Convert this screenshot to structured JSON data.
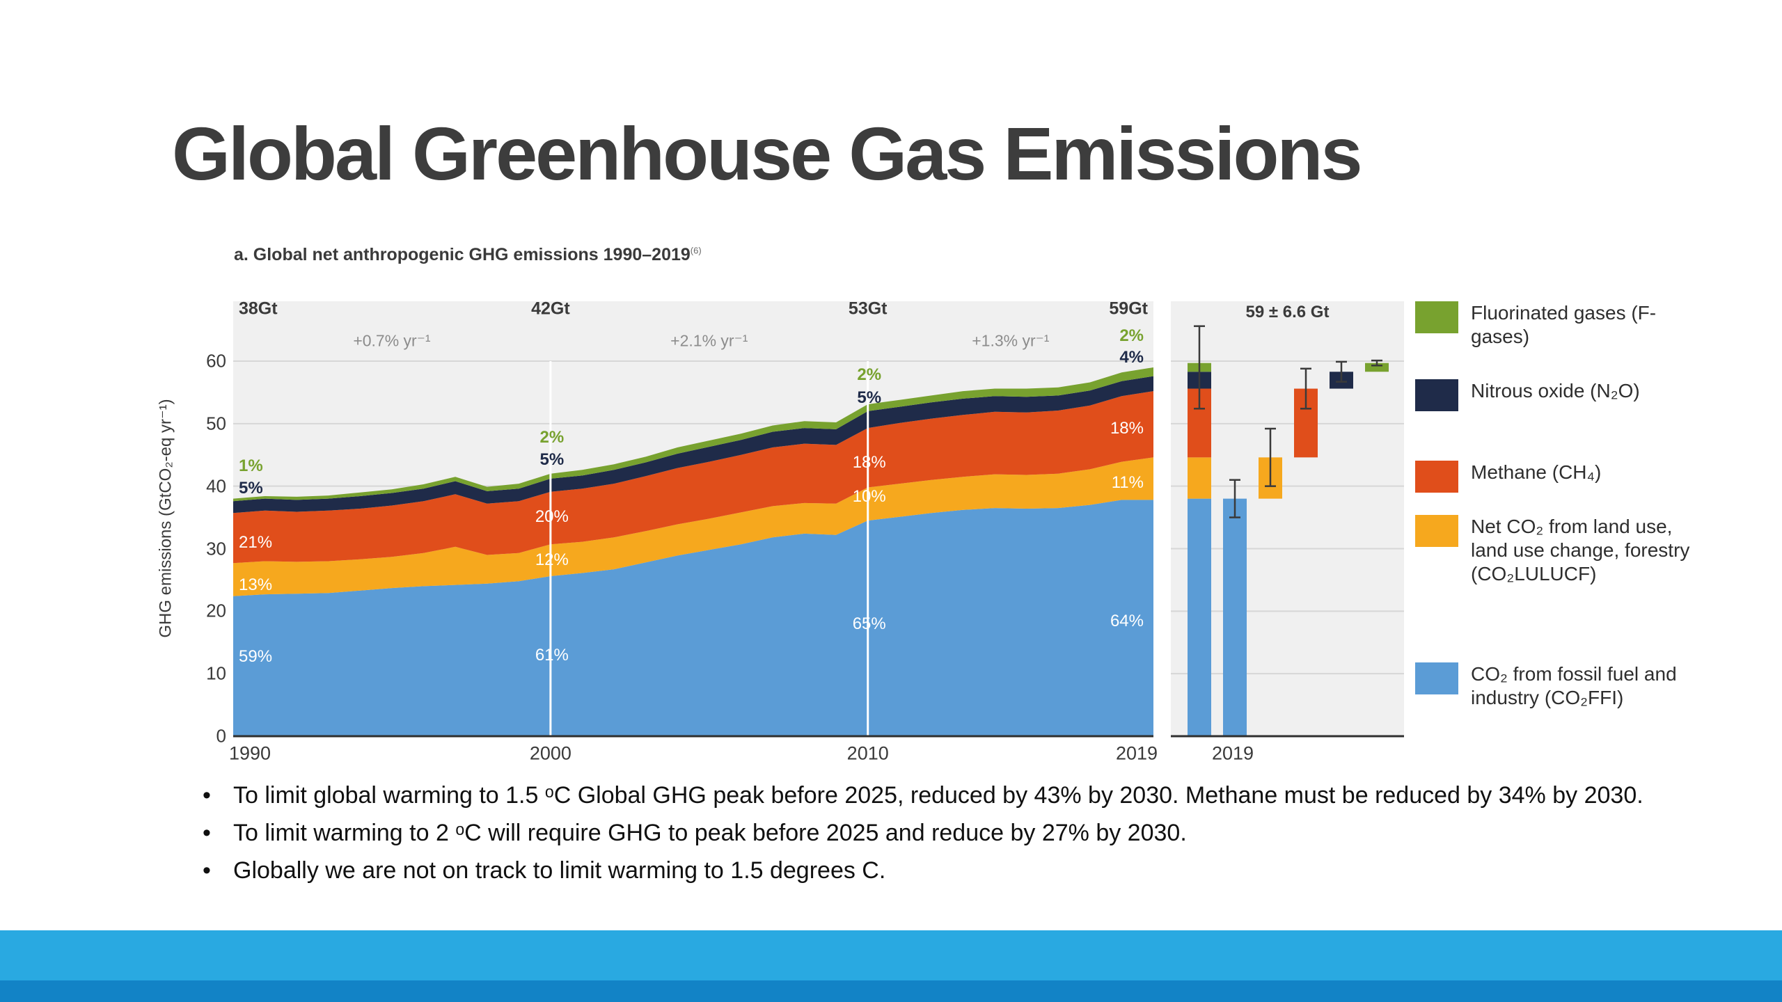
{
  "slide": {
    "title": "Global Greenhouse Gas Emissions",
    "bullets": [
      "To limit global warming to 1.5 ᵒC Global GHG peak before 2025, reduced by 43% by 2030. Methane must be reduced by 34% by 2030.",
      "To limit warming to 2 ᵒC  will require GHG to peak before 2025 and reduce by 27% by 2030.",
      "Globally we are not on track to limit warming to 1.5 degrees C."
    ],
    "footer_colors": {
      "main": "#29a9e1",
      "dark": "#1283c6"
    }
  },
  "figure": {
    "title": "a. Global net anthropogenic GHG emissions 1990–2019",
    "footnote_marker": "(6)",
    "y_axis_label": "GHG emissions (GtCO₂-eq yr⁻¹)",
    "y_ticks": [
      0,
      10,
      20,
      30,
      40,
      50,
      60
    ],
    "x_ticks": [
      "1990",
      "2000",
      "2010",
      "2019"
    ]
  },
  "chart_data": {
    "type": "area",
    "title": "a. Global net anthropogenic GHG emissions 1990–2019",
    "ylabel": "GHG emissions (GtCO₂-eq yr⁻¹)",
    "ylim": [
      0,
      60
    ],
    "grid": true,
    "legend_position": "right",
    "x": [
      1990,
      1991,
      1992,
      1993,
      1994,
      1995,
      1996,
      1997,
      1998,
      1999,
      2000,
      2001,
      2002,
      2003,
      2004,
      2005,
      2006,
      2007,
      2008,
      2009,
      2010,
      2011,
      2012,
      2013,
      2014,
      2015,
      2016,
      2017,
      2018,
      2019
    ],
    "colors": {
      "ffi": "#5b9cd6",
      "lulucf": "#f6a81e",
      "ch4": "#e04e1b",
      "n2o": "#1f2b49",
      "f": "#78a22f"
    },
    "series": [
      {
        "key": "ffi",
        "name": "CO₂ from fossil fuel and industry (CO₂FFI)",
        "color": "#5b9cd6",
        "values": [
          22.4,
          22.7,
          22.8,
          22.9,
          23.3,
          23.7,
          24.0,
          24.2,
          24.4,
          24.8,
          25.6,
          26.1,
          26.7,
          27.8,
          28.9,
          29.8,
          30.7,
          31.8,
          32.4,
          32.2,
          34.5,
          35.1,
          35.7,
          36.2,
          36.5,
          36.4,
          36.5,
          37.0,
          37.8,
          37.8
        ]
      },
      {
        "key": "lulucf",
        "name": "Net CO₂ from land use, land use change, forestry (CO₂LULUCF)",
        "color": "#f6a81e",
        "values": [
          5.3,
          5.3,
          5.1,
          5.1,
          5.0,
          5.0,
          5.3,
          6.1,
          4.6,
          4.5,
          5.1,
          5.0,
          5.1,
          5.0,
          5.0,
          5.0,
          5.1,
          5.0,
          4.9,
          5.0,
          5.3,
          5.3,
          5.3,
          5.3,
          5.4,
          5.4,
          5.5,
          5.7,
          6.1,
          6.8
        ]
      },
      {
        "key": "ch4",
        "name": "Methane (CH₄)",
        "color": "#e04e1b",
        "values": [
          8.0,
          8.1,
          8.0,
          8.1,
          8.1,
          8.2,
          8.3,
          8.4,
          8.2,
          8.3,
          8.4,
          8.5,
          8.6,
          8.8,
          9.0,
          9.1,
          9.2,
          9.4,
          9.5,
          9.4,
          9.5,
          9.7,
          9.8,
          9.9,
          10.0,
          10.0,
          10.1,
          10.2,
          10.5,
          10.6
        ]
      },
      {
        "key": "n2o",
        "name": "Nitrous oxide (N₂O)",
        "color": "#1f2b49",
        "values": [
          1.9,
          1.9,
          1.9,
          1.9,
          2.0,
          2.0,
          2.0,
          2.1,
          2.0,
          2.0,
          2.1,
          2.1,
          2.2,
          2.2,
          2.3,
          2.4,
          2.4,
          2.5,
          2.5,
          2.5,
          2.7,
          2.6,
          2.6,
          2.6,
          2.5,
          2.5,
          2.4,
          2.4,
          2.4,
          2.4
        ]
      },
      {
        "key": "f",
        "name": "Fluorinated gases (F-gases)",
        "color": "#78a22f",
        "values": [
          0.4,
          0.4,
          0.5,
          0.5,
          0.6,
          0.6,
          0.7,
          0.7,
          0.7,
          0.8,
          0.8,
          0.9,
          0.9,
          0.9,
          1.0,
          1.0,
          1.0,
          1.0,
          1.1,
          1.1,
          1.1,
          1.1,
          1.1,
          1.2,
          1.2,
          1.3,
          1.3,
          1.3,
          1.4,
          1.4
        ]
      }
    ],
    "dividers": [
      2000,
      2010
    ],
    "annotations": {
      "totals": [
        {
          "year": 1990,
          "align": "left",
          "v": 68.3,
          "text": "38Gt"
        },
        {
          "year": 2000,
          "align": "center",
          "v": 68.3,
          "text": "42Gt"
        },
        {
          "year": 2010,
          "align": "center",
          "v": 68.3,
          "text": "53Gt"
        },
        {
          "year": 2019,
          "align": "right",
          "v": 68.3,
          "text": "59Gt"
        }
      ],
      "growth_rates": [
        {
          "year": 1995,
          "align": "center",
          "v": 63.2,
          "text": "+0.7% yr⁻¹"
        },
        {
          "year": 2005,
          "align": "center",
          "v": 63.2,
          "text": "+2.1% yr⁻¹"
        },
        {
          "year": 2014.5,
          "align": "center",
          "v": 63.2,
          "text": "+1.3% yr⁻¹"
        }
      ],
      "shares": [
        {
          "year": 1990,
          "align": "left",
          "text": "1%",
          "v": 43.2,
          "color": "#78a22f",
          "bold": true
        },
        {
          "year": 1990,
          "align": "left",
          "text": "5%",
          "v": 39.6,
          "color": "#1f2b49",
          "bold": true
        },
        {
          "year": 1990,
          "align": "left",
          "text": "21%",
          "v": 30.9,
          "color": "#ffffff"
        },
        {
          "year": 1990,
          "align": "left",
          "text": "13%",
          "v": 24.2,
          "color": "#ffffff"
        },
        {
          "year": 1990,
          "align": "left",
          "text": "59%",
          "v": 12.7,
          "color": "#ffffff"
        },
        {
          "year": 2000,
          "align": "center",
          "text": "2%",
          "v": 47.8,
          "color": "#78a22f",
          "bold": true
        },
        {
          "year": 2000,
          "align": "center",
          "text": "5%",
          "v": 44.2,
          "color": "#1f2b49",
          "bold": true
        },
        {
          "year": 2000,
          "align": "center",
          "text": "20%",
          "v": 35.1,
          "color": "#ffffff"
        },
        {
          "year": 2000,
          "align": "center",
          "text": "12%",
          "v": 28.2,
          "color": "#ffffff"
        },
        {
          "year": 2000,
          "align": "center",
          "text": "61%",
          "v": 12.9,
          "color": "#ffffff"
        },
        {
          "year": 2010,
          "align": "center",
          "text": "2%",
          "v": 57.8,
          "color": "#78a22f",
          "bold": true
        },
        {
          "year": 2010,
          "align": "center",
          "text": "5%",
          "v": 54.1,
          "color": "#1f2b49",
          "bold": true
        },
        {
          "year": 2010,
          "align": "center",
          "text": "18%",
          "v": 43.7,
          "color": "#ffffff"
        },
        {
          "year": 2010,
          "align": "center",
          "text": "10%",
          "v": 38.3,
          "color": "#ffffff"
        },
        {
          "year": 2010,
          "align": "center",
          "text": "65%",
          "v": 17.9,
          "color": "#ffffff"
        },
        {
          "year": 2019,
          "align": "right",
          "text": "2%",
          "v": 64.0,
          "color": "#78a22f",
          "bold": true
        },
        {
          "year": 2019,
          "align": "right",
          "text": "4%",
          "v": 60.6,
          "color": "#1f2b49",
          "bold": true
        },
        {
          "year": 2019,
          "align": "right",
          "text": "18%",
          "v": 49.2,
          "color": "#ffffff"
        },
        {
          "year": 2019,
          "align": "right",
          "text": "11%",
          "v": 40.5,
          "color": "#ffffff"
        },
        {
          "year": 2019,
          "align": "right",
          "text": "64%",
          "v": 18.4,
          "color": "#ffffff"
        }
      ]
    },
    "panel_b": {
      "label": "59 ± 6.6 Gt",
      "x_tick": "2019",
      "bars": [
        {
          "name": "total-2019",
          "error": [
            52.4,
            65.6
          ],
          "segments": [
            [
              "ffi",
              0,
              38
            ],
            [
              "lulucf",
              38,
              44.6
            ],
            [
              "ch4",
              44.6,
              55.6
            ],
            [
              "n2o",
              55.6,
              58.3
            ],
            [
              "f",
              58.3,
              59.7
            ]
          ]
        },
        {
          "name": "co2-ffi",
          "error": [
            35.0,
            41.0
          ],
          "segments": [
            [
              "ffi",
              0,
              38
            ]
          ]
        },
        {
          "name": "co2-lulucf",
          "error": [
            40.0,
            49.2
          ],
          "segments": [
            [
              "lulucf",
              38,
              44.6
            ]
          ]
        },
        {
          "name": "methane",
          "error": [
            52.4,
            58.8
          ],
          "segments": [
            [
              "ch4",
              44.6,
              55.6
            ]
          ]
        },
        {
          "name": "nitrous-oxide",
          "error": [
            56.7,
            59.9
          ],
          "segments": [
            [
              "n2o",
              55.6,
              58.3
            ]
          ]
        },
        {
          "name": "f-gases",
          "error": [
            59.3,
            60.1
          ],
          "segments": [
            [
              "f",
              58.3,
              59.7
            ]
          ]
        }
      ]
    }
  }
}
